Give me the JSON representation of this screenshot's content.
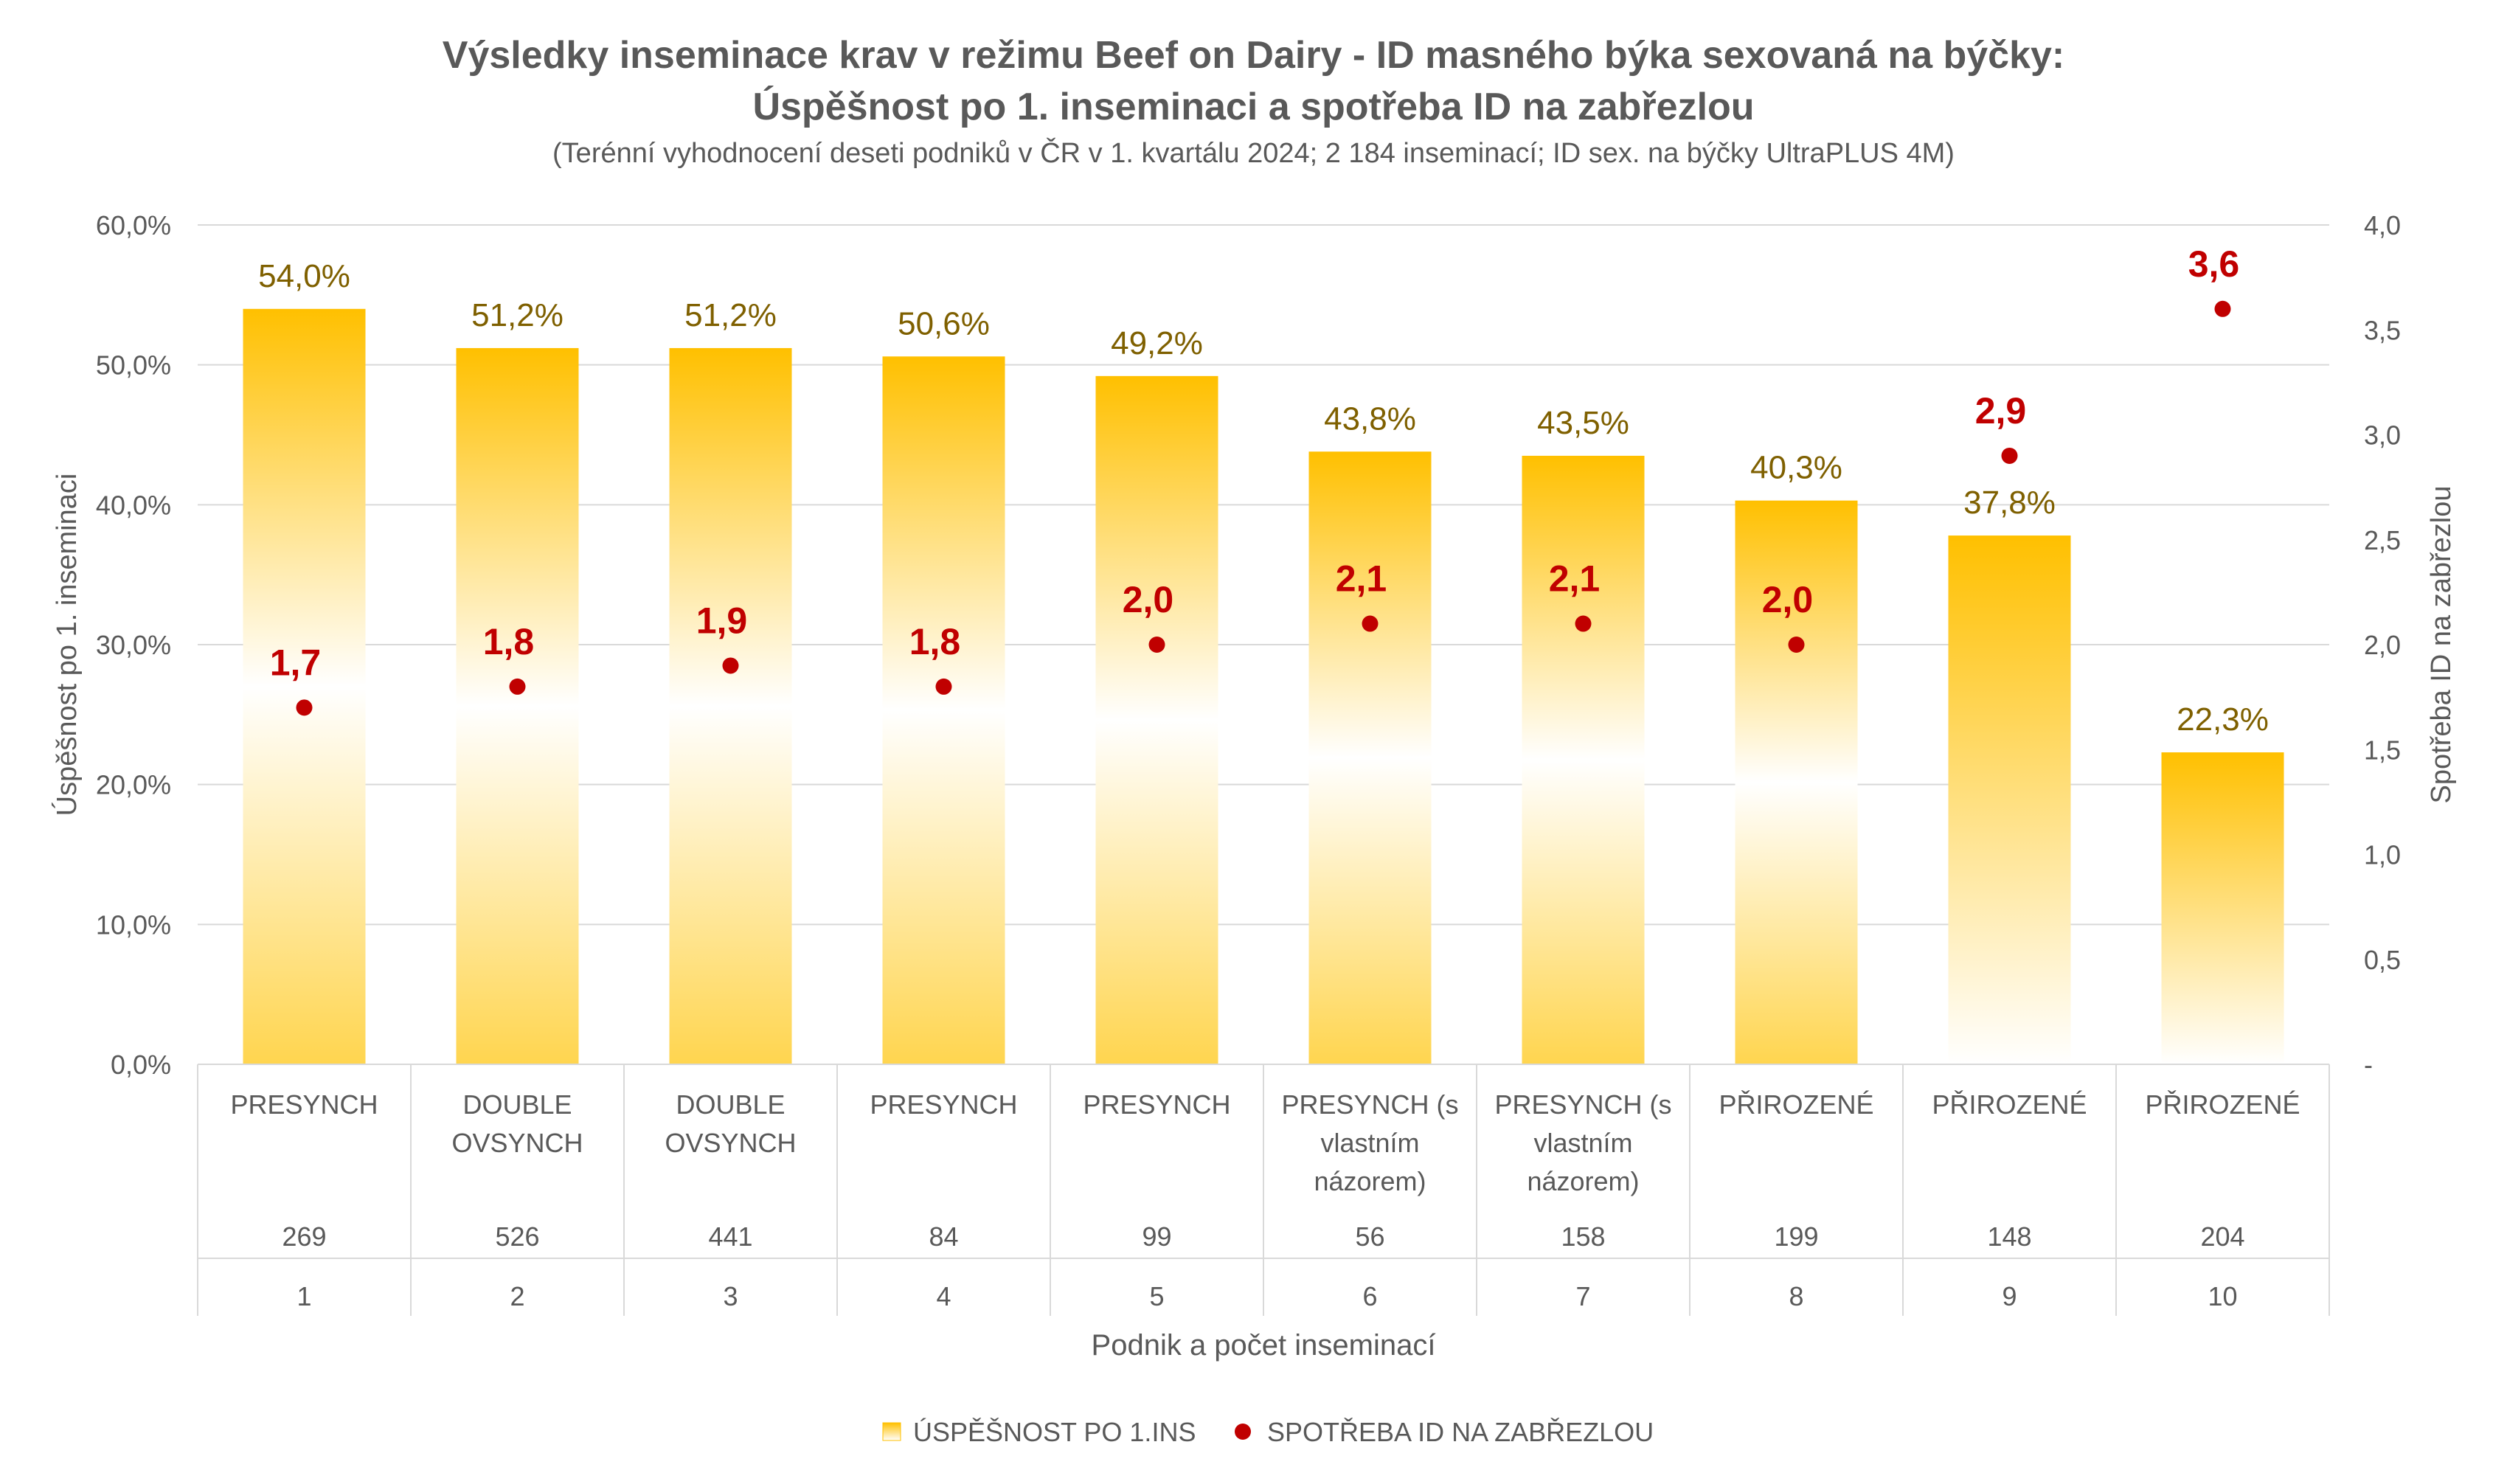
{
  "chart_data": {
    "type": "bar",
    "title": "Výsledky inseminace krav v režimu Beef on Dairy - ID masného býka sexovaná na býčky:",
    "subtitle": "Úspěšnost po 1. inseminaci a spotřeba ID na zabřezlou",
    "note": "(Terénní vyhodnocení deseti podniků v ČR v 1. kvartálu 2024; 2 184 inseminací; ID sex. na býčky UltraPLUS 4M)",
    "xlabel": "Podnik a počet inseminací",
    "ylabel": "Úspěšnost po 1. inseminaci",
    "y2label": "Spotřeba ID na zabřezlou",
    "ylim": [
      0,
      60
    ],
    "y2lim": [
      0,
      4
    ],
    "yticks": [
      "0,0%",
      "10,0%",
      "20,0%",
      "30,0%",
      "40,0%",
      "50,0%",
      "60,0%"
    ],
    "y2ticks": [
      "-",
      "0,5",
      "1,0",
      "1,5",
      "2,0",
      "2,5",
      "3,0",
      "3,5",
      "4,0"
    ],
    "categories": [
      {
        "program": [
          "PRESYNCH"
        ],
        "count": "269",
        "id": "1"
      },
      {
        "program": [
          "DOUBLE",
          "OVSYNCH"
        ],
        "count": "526",
        "id": "2"
      },
      {
        "program": [
          "DOUBLE",
          "OVSYNCH"
        ],
        "count": "441",
        "id": "3"
      },
      {
        "program": [
          "PRESYNCH"
        ],
        "count": "84",
        "id": "4"
      },
      {
        "program": [
          "PRESYNCH"
        ],
        "count": "99",
        "id": "5"
      },
      {
        "program": [
          "PRESYNCH (s",
          "vlastním",
          "názorem)"
        ],
        "count": "56",
        "id": "6"
      },
      {
        "program": [
          "PRESYNCH (s",
          "vlastním",
          "názorem)"
        ],
        "count": "158",
        "id": "7"
      },
      {
        "program": [
          "PŘIROZENÉ"
        ],
        "count": "199",
        "id": "8"
      },
      {
        "program": [
          "PŘIROZENÉ"
        ],
        "count": "148",
        "id": "9"
      },
      {
        "program": [
          "PŘIROZENÉ"
        ],
        "count": "204",
        "id": "10"
      }
    ],
    "series": [
      {
        "name": "ÚSPĚŠNOST PO 1.INS",
        "kind": "bar",
        "axis": "left",
        "color": "#FFC000",
        "values": [
          54.0,
          51.2,
          51.2,
          50.6,
          49.2,
          43.8,
          43.5,
          40.3,
          37.8,
          22.3
        ],
        "labels": [
          "54,0%",
          "51,2%",
          "51,2%",
          "50,6%",
          "49,2%",
          "43,8%",
          "43,5%",
          "40,3%",
          "37,8%",
          "22,3%"
        ]
      },
      {
        "name": "SPOTŘEBA ID NA ZABŘEZLOU",
        "kind": "scatter",
        "axis": "right",
        "color": "#C00000",
        "values": [
          1.7,
          1.8,
          1.9,
          1.8,
          2.0,
          2.1,
          2.1,
          2.0,
          2.9,
          3.6
        ],
        "labels": [
          "1,7",
          "1,8",
          "1,9",
          "1,8",
          "2,0",
          "2,1",
          "2,1",
          "2,0",
          "2,9",
          "3,6"
        ]
      }
    ],
    "legend": "bottom",
    "grid": true
  }
}
